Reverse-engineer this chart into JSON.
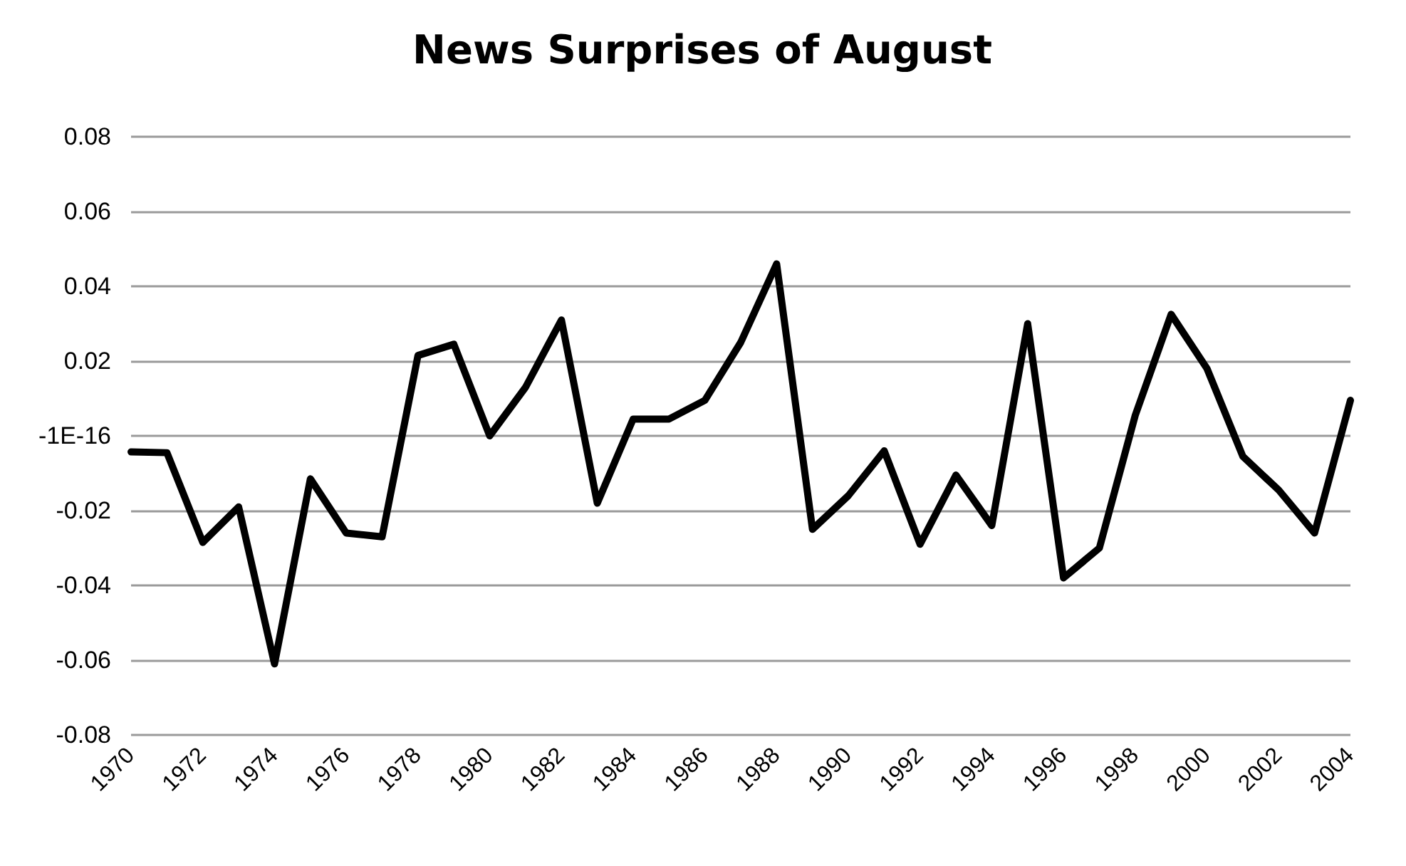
{
  "chart_data": {
    "type": "line",
    "title": "News Surprises of August",
    "categories": [
      "1970",
      null,
      "1972",
      null,
      "1974",
      null,
      "1976",
      null,
      "1978",
      null,
      "1980",
      null,
      "1982",
      null,
      "1984",
      null,
      "1986",
      null,
      "1988",
      null,
      "1990",
      null,
      "1992",
      null,
      "1994",
      null,
      "1996",
      null,
      "1998",
      null,
      "2000",
      null,
      "2002",
      null,
      "2004"
    ],
    "series": [
      {
        "color": "#000000",
        "values": [
          -0.0043,
          -0.0045,
          -0.0285,
          -0.019,
          -0.061,
          -0.0115,
          -0.026,
          -0.027,
          0.0215,
          0.0245,
          0,
          0.013,
          0.031,
          -0.018,
          0.0045,
          0.0045,
          0.0095,
          0.025,
          0.046,
          -0.025,
          -0.016,
          -0.004,
          -0.029,
          -0.0105,
          -0.024,
          0.03,
          -0.038,
          -0.03,
          0.0055,
          0.0325,
          0.018,
          -0.0055,
          -0.0145,
          -0.026,
          0.0095
        ]
      }
    ],
    "ylim": [
      -0.08,
      0.08
    ],
    "yticks": [
      -0.08,
      -0.06,
      -0.04,
      -0.02,
      {
        "value": 0,
        "label": "-1E-16"
      },
      0.02,
      0.04,
      0.06,
      0.08
    ],
    "grid": "y",
    "marker": "none",
    "line_style": "solid"
  }
}
